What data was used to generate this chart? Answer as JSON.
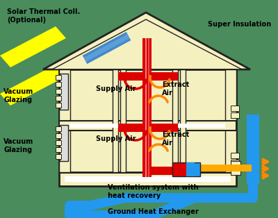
{
  "bg_color": "#4a8c5c",
  "house_color": "#f5f0c0",
  "wall_color": "#222222",
  "red_pipe": "#dd0000",
  "blue_pipe": "#2299ee",
  "yellow_pipe": "#ffaa00",
  "solar_color": "#4488cc",
  "sun_yellow": "#ffff00",
  "text_color": "#000000",
  "orange_arrow": "#ff8800",
  "labels": {
    "solar": "Solar Thermal Coll.\n(Optional)",
    "super_insulation": "Super Insulation",
    "vacuum_glazing_top": "Vacuum\nGlazing",
    "vacuum_glazing_bot": "Vacuum\nGlazing",
    "supply_air_top": "Supply Air",
    "extract_air_top": "Extract\nAir",
    "supply_air_bot": "Supply Air",
    "extract_air_bot": "Extract\nAir",
    "ventilation": "Ventilation system with\nheat recovery",
    "ground_heat": "Ground Heat Exchanger"
  }
}
